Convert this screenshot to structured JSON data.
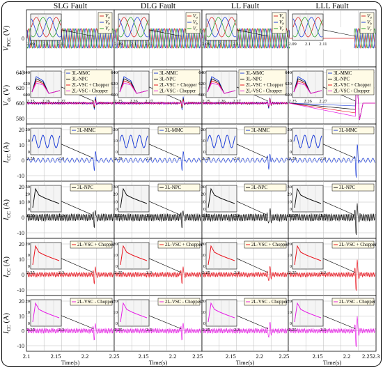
{
  "chart_data": {
    "type": "line",
    "columns": [
      "SLG Fault",
      "DLG Fault",
      "LL Fault",
      "LLL Fault"
    ],
    "xlabel": "Time(s)",
    "x_ticks": {
      "first": [
        "2.1",
        "2.15",
        "2.2",
        "2.25"
      ],
      "middle": [
        "2.15",
        "2.2",
        "2.25"
      ],
      "last": [
        "2.15",
        "2.2",
        "2.25",
        "2.3"
      ]
    },
    "rows": [
      {
        "ylabel_main": "V",
        "ylabel_sub": "PCC",
        "ylabel_unit": " (V)",
        "y_ticks": [
          "0"
        ],
        "legend": [
          "Va",
          "Vb",
          "Vc"
        ],
        "inset_x_ticks": [
          "2.09",
          "2.1",
          "2.11"
        ]
      },
      {
        "ylabel_main": "V",
        "ylabel_sub": "dc",
        "ylabel_unit": " (V)",
        "y_ticks": [
          "640",
          "620",
          "600",
          "580"
        ],
        "legend": [
          "3L-MMC",
          "3L-NPC",
          "2L-VSC + Chopper",
          "2L-VSC - Chopper"
        ],
        "inset_y_ticks": [
          "640",
          "620",
          "600"
        ],
        "inset_x_ticks": [
          "2.25",
          "2.26",
          "2.27"
        ]
      },
      {
        "ylabel_main": "I",
        "ylabel_sub": "CC",
        "ylabel_unit": " (A)",
        "y_ticks": [
          "20",
          "10",
          "0",
          "-10"
        ],
        "legend": [
          "3L-MMC"
        ],
        "inset_y_ticks": [
          "20",
          "10",
          "0"
        ],
        "inset_x_ticks": [
          "2.25",
          "2.3"
        ]
      },
      {
        "ylabel_main": "I",
        "ylabel_sub": "CC",
        "ylabel_unit": " (A)",
        "y_ticks": [
          "20",
          "10",
          "0",
          "-10"
        ],
        "legend": [
          "3L-NPC"
        ],
        "inset_y_ticks": [
          "30",
          "20",
          "10",
          "0"
        ],
        "inset_x_ticks": [
          "2.25",
          "2.3"
        ]
      },
      {
        "ylabel_main": "I",
        "ylabel_sub": "CC",
        "ylabel_unit": " (A)",
        "y_ticks": [
          "20",
          "10",
          "0",
          "-10"
        ],
        "legend": [
          "2L-VSC + Chopper"
        ],
        "inset_y_ticks": [
          "20",
          "10",
          "0"
        ],
        "inset_x_ticks": [
          "2.25",
          "2.3"
        ]
      },
      {
        "ylabel_main": "I",
        "ylabel_sub": "CC",
        "ylabel_unit": " (A)",
        "y_ticks": [
          "20",
          "10",
          "0",
          "-10"
        ],
        "legend": [
          "2L-VSC - Chopper"
        ],
        "inset_y_ticks": [
          "20",
          "10",
          "0"
        ],
        "inset_x_ticks": [
          "2.25",
          "2.3"
        ]
      }
    ],
    "series_colors": {
      "Va": "#d62728",
      "Vb": "#1f3fd8",
      "Vc": "#2ca02c",
      "3L-MMC": "#1f3fd8",
      "3L-NPC": "#111111",
      "2L-VSC + Chopper": "#e8141e",
      "2L-VSC - Chopper": "#e61ee6"
    }
  }
}
